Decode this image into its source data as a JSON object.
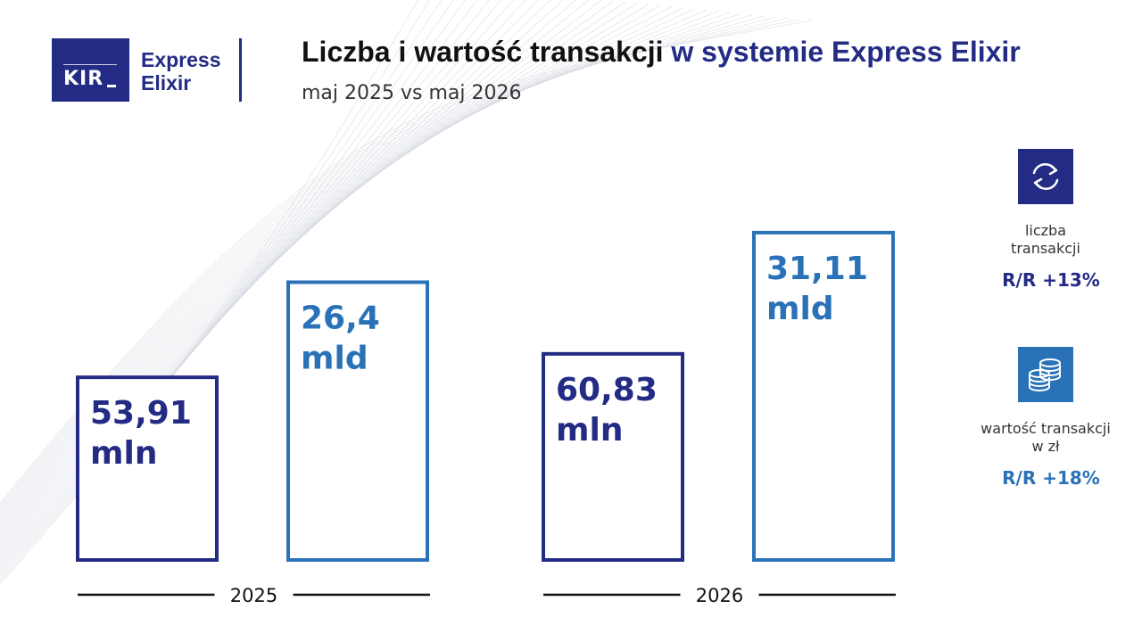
{
  "logo": {
    "kir": "KIR",
    "brand_line1": "Express",
    "brand_line2": "Elixir"
  },
  "header": {
    "title_main": "Liczba i wartość transakcji",
    "title_accent": "w systemie Express Elixir",
    "subtitle": "maj 2025 vs maj 2026"
  },
  "colors": {
    "navy": "#232b84",
    "blue": "#2a72b8",
    "axis": "#111111"
  },
  "chart_data": {
    "type": "bar",
    "categories": [
      "2025",
      "2026"
    ],
    "series": [
      {
        "metric": "count",
        "values": [
          53.91,
          60.83
        ],
        "labels": [
          "53,91",
          "60,83"
        ],
        "unit": "mln",
        "color": "#232b84"
      },
      {
        "metric": "value",
        "values": [
          26.4,
          31.11
        ],
        "labels": [
          "26,4",
          "31,11"
        ],
        "unit": "mld",
        "color": "#2a72b8"
      }
    ],
    "title": "Liczba i wartość transakcji w systemie Express Elixir",
    "subtitle": "maj 2025 vs maj 2026",
    "grid": false,
    "legend": "right"
  },
  "kpis": [
    {
      "icon": "exchange-arrows-icon",
      "label_line1": "liczba",
      "label_line2": "transakcji",
      "value": "R/R +13%",
      "color": "#232b84"
    },
    {
      "icon": "coins-stack-icon",
      "label_line1": "wartość transakcji",
      "label_line2": "w zł",
      "value": "R/R +18%",
      "color": "#2a72b8"
    }
  ]
}
